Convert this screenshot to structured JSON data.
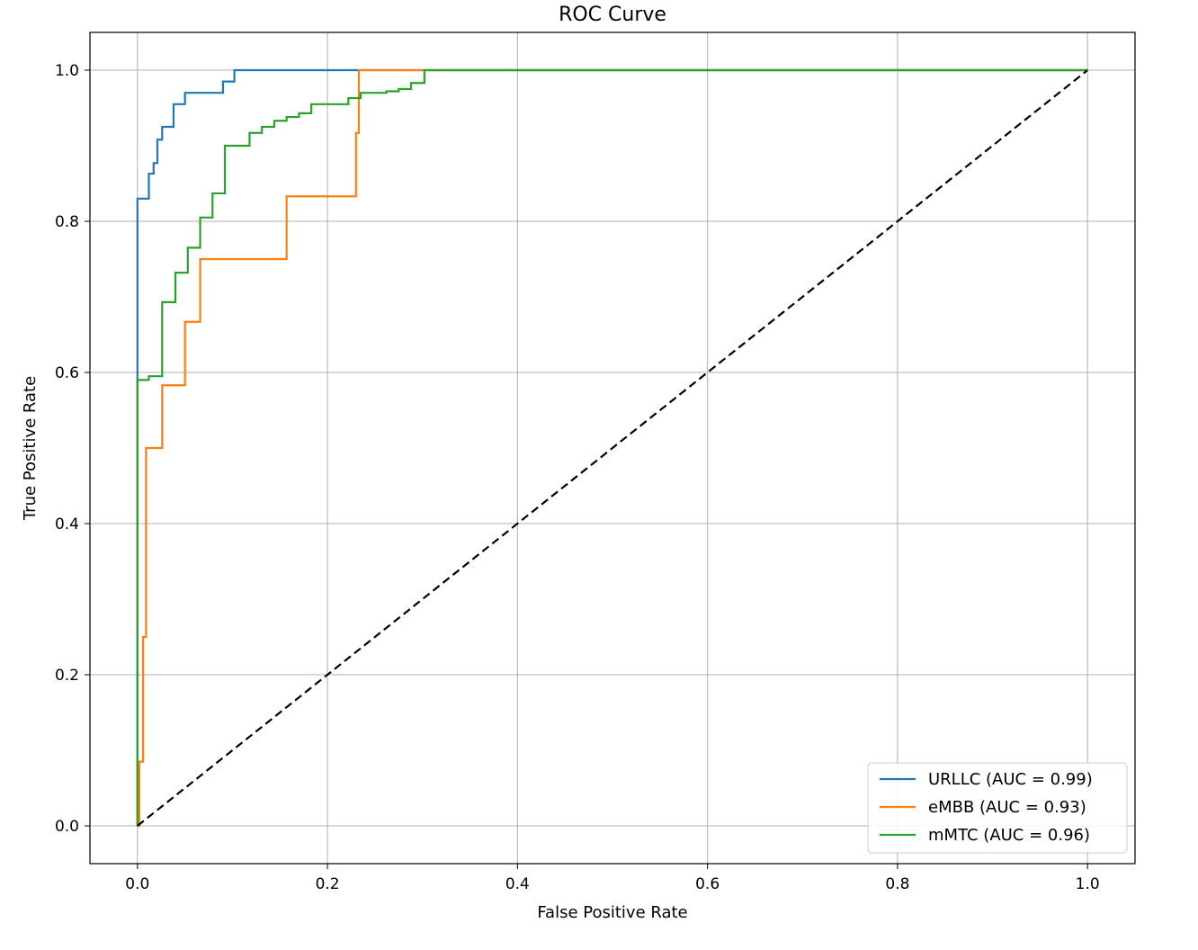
{
  "chart_data": {
    "type": "line",
    "title": "ROC Curve",
    "xlabel": "False Positive Rate",
    "ylabel": "True Positive Rate",
    "xlim": [
      -0.05,
      1.05
    ],
    "ylim": [
      -0.05,
      1.05
    ],
    "xticks": [
      0.0,
      0.2,
      0.4,
      0.6,
      0.8,
      1.0
    ],
    "yticks": [
      0.0,
      0.2,
      0.4,
      0.6,
      0.8,
      1.0
    ],
    "tick_labels_x": [
      "0.0",
      "0.2",
      "0.4",
      "0.6",
      "0.8",
      "1.0"
    ],
    "tick_labels_y": [
      "0.0",
      "0.2",
      "0.4",
      "0.6",
      "0.8",
      "1.0"
    ],
    "grid": true,
    "legend_position": "lower-right",
    "series": [
      {
        "name": "URLLC (AUC = 0.99)",
        "color": "#1f77b4",
        "step": true,
        "x": [
          0,
          0,
          0.012,
          0.012,
          0.017,
          0.017,
          0.021,
          0.021,
          0.026,
          0.026,
          0.038,
          0.038,
          0.05,
          0.05,
          0.09,
          0.09,
          0.102,
          0.102,
          0.23,
          1.0
        ],
        "y": [
          0,
          0.83,
          0.83,
          0.863,
          0.863,
          0.877,
          0.877,
          0.908,
          0.908,
          0.925,
          0.925,
          0.955,
          0.955,
          0.97,
          0.97,
          0.985,
          0.985,
          1.0,
          1.0,
          1.0
        ]
      },
      {
        "name": "eMBB (AUC = 0.93)",
        "color": "#ff7f0e",
        "step": true,
        "x": [
          0,
          0.002,
          0.002,
          0.006,
          0.006,
          0.009,
          0.009,
          0.012,
          0.012,
          0.026,
          0.026,
          0.05,
          0.05,
          0.066,
          0.066,
          0.157,
          0.157,
          0.23,
          0.23,
          0.233,
          0.233,
          0.305,
          1.0
        ],
        "y": [
          0,
          0,
          0.085,
          0.085,
          0.25,
          0.25,
          0.5,
          0.5,
          0.5,
          0.5,
          0.583,
          0.583,
          0.667,
          0.667,
          0.75,
          0.75,
          0.833,
          0.833,
          0.917,
          0.917,
          1.0,
          1.0,
          1.0
        ]
      },
      {
        "name": "mMTC (AUC = 0.96)",
        "color": "#2ca02c",
        "step": true,
        "x": [
          0,
          0,
          0.012,
          0.012,
          0.026,
          0.026,
          0.04,
          0.04,
          0.053,
          0.053,
          0.066,
          0.066,
          0.079,
          0.079,
          0.092,
          0.092,
          0.118,
          0.118,
          0.131,
          0.131,
          0.144,
          0.144,
          0.157,
          0.157,
          0.17,
          0.17,
          0.183,
          0.183,
          0.222,
          0.222,
          0.235,
          0.235,
          0.262,
          0.262,
          0.275,
          0.275,
          0.288,
          0.288,
          0.302,
          0.302,
          0.305,
          1.0
        ],
        "y": [
          0,
          0.59,
          0.59,
          0.595,
          0.595,
          0.693,
          0.693,
          0.732,
          0.732,
          0.765,
          0.765,
          0.805,
          0.805,
          0.837,
          0.837,
          0.9,
          0.9,
          0.917,
          0.917,
          0.925,
          0.925,
          0.933,
          0.933,
          0.938,
          0.938,
          0.943,
          0.943,
          0.955,
          0.955,
          0.963,
          0.963,
          0.97,
          0.97,
          0.972,
          0.972,
          0.975,
          0.975,
          0.983,
          0.983,
          1.0,
          1.0,
          1.0
        ]
      },
      {
        "name": "",
        "color": "#000000",
        "dashed": true,
        "legend": false,
        "x": [
          0,
          1
        ],
        "y": [
          0,
          1
        ]
      }
    ]
  }
}
